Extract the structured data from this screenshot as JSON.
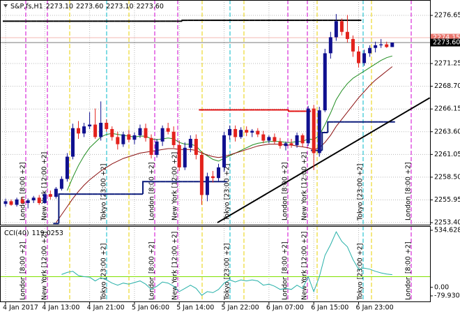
{
  "chart_data": [
    {
      "type": "candlestick",
      "title": "S&P,fs,H1",
      "header_values": [
        "2273.10",
        "2273.60",
        "2273.10",
        "2273.60"
      ],
      "categories": [
        "4 Jan 2017",
        null,
        null,
        null,
        null,
        null,
        null,
        "4 Jan 13:00",
        null,
        null,
        null,
        null,
        null,
        null,
        null,
        "4 Jan 21:00",
        null,
        null,
        null,
        null,
        null,
        null,
        null,
        "5 Jan 06:00",
        null,
        null,
        null,
        null,
        null,
        null,
        null,
        "5 Jan 14:00",
        null,
        null,
        null,
        null,
        null,
        null,
        null,
        "5 Jan 22:00",
        null,
        null,
        null,
        null,
        null,
        null,
        null,
        "6 Jan 07:00",
        null,
        null,
        null,
        null,
        null,
        null,
        null,
        "6 Jan 15:00",
        null,
        null,
        null,
        null,
        null,
        null,
        null,
        "6 Jan 23:00",
        null,
        null,
        null,
        null,
        null,
        null
      ],
      "open": [
        2255.5,
        2255.8,
        2255.4,
        2256.0,
        2255.6,
        2255.9,
        2256.2,
        2255.6,
        2256.6,
        2256.3,
        2257.2,
        2258.3,
        2260.8,
        2264.0,
        2263.4,
        2264.2,
        2264.4,
        2263.0,
        2264.6,
        2263.9,
        2263.0,
        2262.2,
        2263.3,
        2262.7,
        2263.2,
        2264.0,
        2262.9,
        2261.0,
        2262.5,
        2264.0,
        2263.6,
        2262.1,
        2259.6,
        2261.8,
        2262.8,
        2261.0,
        2256.5,
        2258.6,
        2258.4,
        2259.6,
        2263.2,
        2263.9,
        2263.0,
        2263.8,
        2263.5,
        2263.7,
        2263.3,
        2262.6,
        2263.0,
        2262.5,
        2262.0,
        2262.3,
        2262.1,
        2263.2,
        2262.3,
        2266.2,
        2261.2,
        2266.0,
        2272.4,
        2274.2,
        2276.0,
        2274.8,
        2274.0,
        2272.6,
        2271.3,
        2272.4,
        2273.0,
        2273.3,
        2273.4,
        2273.1
      ],
      "high": [
        2256.1,
        2256.0,
        2256.2,
        2256.3,
        2256.1,
        2256.4,
        2256.5,
        2256.8,
        2257.0,
        2257.4,
        2258.6,
        2261.2,
        2264.5,
        2264.8,
        2264.6,
        2265.8,
        2266.2,
        2267.0,
        2265.0,
        2264.2,
        2263.6,
        2263.6,
        2263.8,
        2263.5,
        2264.4,
        2264.5,
        2263.3,
        2262.8,
        2264.3,
        2264.6,
        2264.2,
        2262.6,
        2262.4,
        2263.2,
        2263.3,
        2261.4,
        2259.0,
        2259.2,
        2260.0,
        2263.6,
        2264.3,
        2264.3,
        2264.1,
        2264.2,
        2263.9,
        2264.0,
        2263.7,
        2263.2,
        2263.4,
        2262.9,
        2262.5,
        2262.8,
        2263.5,
        2263.4,
        2266.5,
        2266.6,
        2266.4,
        2272.9,
        2274.8,
        2276.8,
        2276.3,
        2276.7,
        2274.4,
        2273.2,
        2272.8,
        2273.3,
        2273.7,
        2274.0,
        2273.7,
        2273.6
      ],
      "low": [
        2255.2,
        2255.3,
        2255.2,
        2255.5,
        2255.0,
        2255.6,
        2255.4,
        2255.5,
        2256.0,
        2256.1,
        2257.0,
        2258.0,
        2260.5,
        2262.8,
        2263.0,
        2263.9,
        2262.8,
        2262.6,
        2263.6,
        2262.6,
        2261.6,
        2261.9,
        2262.4,
        2262.2,
        2262.9,
        2262.5,
        2260.6,
        2260.7,
        2262.0,
        2263.3,
        2261.8,
        2259.2,
        2259.3,
        2261.3,
        2260.5,
        2255.4,
        2255.8,
        2257.9,
        2258.0,
        2259.1,
        2262.7,
        2262.5,
        2262.8,
        2263.1,
        2263.0,
        2263.0,
        2262.3,
        2262.3,
        2262.2,
        2261.7,
        2261.5,
        2261.8,
        2261.8,
        2261.9,
        2262.0,
        2259.3,
        2260.8,
        2265.8,
        2271.8,
        2273.8,
        2274.4,
        2273.6,
        2272.0,
        2270.8,
        2271.0,
        2272.0,
        2272.5,
        2273.0,
        2273.0,
        2273.1
      ],
      "close": [
        2255.8,
        2255.4,
        2256.0,
        2255.6,
        2255.9,
        2256.2,
        2255.6,
        2256.6,
        2256.3,
        2257.2,
        2258.3,
        2260.8,
        2264.0,
        2263.4,
        2264.2,
        2264.4,
        2263.0,
        2264.6,
        2263.9,
        2263.0,
        2262.2,
        2263.3,
        2262.7,
        2263.2,
        2264.0,
        2262.9,
        2261.0,
        2262.5,
        2264.0,
        2263.6,
        2262.1,
        2259.6,
        2261.8,
        2262.8,
        2261.0,
        2256.5,
        2258.6,
        2258.4,
        2259.6,
        2263.2,
        2263.9,
        2263.0,
        2263.8,
        2263.5,
        2263.7,
        2263.3,
        2262.6,
        2263.0,
        2262.5,
        2262.0,
        2262.3,
        2262.1,
        2263.2,
        2262.3,
        2266.2,
        2261.2,
        2266.0,
        2272.4,
        2274.2,
        2276.0,
        2274.8,
        2274.0,
        2272.6,
        2271.3,
        2272.4,
        2273.0,
        2273.3,
        2273.4,
        2273.1,
        2273.6
      ],
      "up_color": "#10108f",
      "down_color": "#e3221c",
      "ylim": [
        2253.17,
        2278.22
      ],
      "yticks": [
        2276.65,
        2271.25,
        {
          "value": 2268.7,
          "label": "2268.70"
        },
        2266.15,
        {
          "value": 2263.6,
          "label": "2263.60"
        },
        2261.05,
        {
          "value": 2258.5,
          "label": "2258.50"
        },
        2255.95,
        {
          "value": 2253.4,
          "label": "2253.40"
        }
      ],
      "grid": true,
      "overlays": [
        {
          "style": "line",
          "color": "#1e8c1e",
          "values": [
            null,
            null,
            null,
            null,
            null,
            null,
            null,
            null,
            null,
            null,
            null,
            2257.0,
            2258.5,
            2259.8,
            2260.9,
            2261.8,
            2262.4,
            2263.0,
            2263.3,
            2263.4,
            2263.3,
            2263.2,
            2263.1,
            2263.0,
            2263.1,
            2263.1,
            2262.8,
            2262.7,
            2262.8,
            2262.9,
            2262.8,
            2262.4,
            2262.2,
            2262.2,
            2262.0,
            2261.3,
            2260.9,
            2260.5,
            2260.3,
            2260.6,
            2260.9,
            2261.2,
            2261.5,
            2261.8,
            2262.1,
            2262.3,
            2262.4,
            2262.5,
            2262.5,
            2262.5,
            2262.4,
            2262.4,
            2262.5,
            2262.5,
            2262.8,
            2262.7,
            2263.2,
            2264.4,
            2265.7,
            2267.2,
            2268.2,
            2269.0,
            2269.6,
            2270.0,
            2270.4,
            2270.8,
            2271.2,
            2271.6,
            2271.9,
            2272.1
          ]
        },
        {
          "style": "line",
          "color": "#8b1010",
          "values": [
            null,
            null,
            null,
            null,
            null,
            null,
            null,
            null,
            null,
            2253.4,
            2254.3,
            2255.2,
            2256.1,
            2256.9,
            2257.6,
            2258.2,
            2258.7,
            2259.2,
            2259.6,
            2260.0,
            2260.3,
            2260.6,
            2260.8,
            2261.0,
            2261.2,
            2261.3,
            2261.4,
            2261.5,
            2261.6,
            2261.7,
            2261.7,
            2261.6,
            2261.6,
            2261.6,
            2261.5,
            2261.2,
            2261.0,
            2260.8,
            2260.7,
            2260.8,
            2261.0,
            2261.2,
            2261.4,
            2261.6,
            2261.8,
            2262.0,
            2262.1,
            2262.2,
            2262.2,
            2262.2,
            2262.1,
            2262.1,
            2262.0,
            2261.9,
            2261.8,
            2261.6,
            2261.8,
            2262.4,
            2263.2,
            2264.2,
            2265.0,
            2265.8,
            2266.6,
            2267.4,
            2268.1,
            2268.8,
            2269.4,
            2269.9,
            2270.4,
            2270.9
          ]
        },
        {
          "style": "step",
          "color": "#0a1a7a",
          "values": [
            null,
            null,
            null,
            null,
            null,
            null,
            null,
            null,
            null,
            2253.3,
            2256.6,
            2256.6,
            2256.6,
            2256.6,
            2256.6,
            2256.6,
            2256.6,
            2256.6,
            2256.6,
            2256.6,
            2256.6,
            2256.6,
            2256.6,
            2256.6,
            2256.6,
            2258.0,
            2258.0,
            2258.0,
            2258.0,
            2258.0,
            2258.0,
            2258.0,
            2258.0,
            2258.0,
            2258.0,
            2258.0,
            2258.0,
            2258.0,
            2258.0,
            2258.0,
            null,
            null,
            null,
            null,
            null,
            null,
            null,
            null,
            null,
            null,
            null,
            null,
            null,
            null,
            null,
            2261.5,
            2261.5,
            2263.5,
            2264.7,
            2264.7,
            2264.7,
            2264.7,
            2264.7,
            2264.7,
            2264.7,
            2264.7,
            2264.7,
            2264.7,
            2264.7,
            2264.7
          ]
        },
        {
          "style": "step",
          "color": "#e01010",
          "values": [
            null,
            null,
            null,
            null,
            null,
            null,
            null,
            null,
            null,
            null,
            null,
            null,
            null,
            null,
            null,
            null,
            null,
            null,
            null,
            null,
            null,
            null,
            null,
            null,
            null,
            null,
            null,
            null,
            null,
            null,
            null,
            null,
            null,
            null,
            null,
            2266.05,
            2266.05,
            2266.05,
            2266.05,
            2266.05,
            2266.05,
            2266.05,
            2266.05,
            2266.05,
            2266.05,
            2266.05,
            2266.05,
            2266.05,
            2266.05,
            2266.05,
            2266.05,
            2265.9,
            2265.9,
            2265.9,
            2265.9,
            null,
            null,
            null,
            null,
            null,
            null,
            null,
            null,
            null,
            null,
            null,
            null,
            null,
            null,
            null
          ]
        },
        {
          "style": "step",
          "color": "#000000",
          "values": [
            2276.0,
            2276.0,
            2276.0,
            2276.0,
            2276.0,
            2276.0,
            2276.0,
            2276.0,
            2276.0,
            2276.0,
            2276.0,
            2276.0,
            2276.0,
            2276.0,
            2276.0,
            2276.0,
            2276.0,
            2276.0,
            2276.0,
            2276.0,
            2276.0,
            2276.0,
            2276.0,
            2276.0,
            2276.0,
            2276.0,
            2276.0,
            2276.0,
            2276.0,
            2276.0,
            2276.0,
            2276.0,
            2276.1,
            2276.1,
            2276.1,
            2276.1,
            2276.1,
            2276.1,
            2276.1,
            2276.1,
            2276.1,
            2276.1,
            2276.1,
            2276.1,
            2276.1,
            2276.1,
            2276.1,
            2276.1,
            2276.1,
            2276.1,
            2276.1,
            2276.1,
            2276.1,
            2276.1,
            2276.1,
            2276.1,
            2276.1,
            2276.1,
            2276.1,
            2276.1,
            2276.1,
            2276.1,
            2276.1,
            2276.1,
            null,
            null,
            null,
            null,
            null,
            null
          ]
        }
      ],
      "trendline": {
        "color": "#000000",
        "x": [
          37.8,
          75.7
        ],
        "values": [
          2253.4,
          2267.4
        ]
      },
      "price_tags": [
        {
          "value": 2274.15,
          "label": "2274.15",
          "color": "#e8776f"
        },
        {
          "value": 2273.6,
          "label": "2273.60",
          "color": "#000000"
        }
      ],
      "sessions": [
        {
          "label": "London [8:00 +2]",
          "color": "#d000d0"
        },
        {
          "label": "New York [12:00 +2]",
          "color": "#d000d0"
        },
        {
          "label": "Tokyo [23:00 +2]",
          "color": "#00b8c8"
        },
        {
          "label": "London [8:00 +2]",
          "color": "#d000d0"
        },
        {
          "label": "New York [12:00 +2]",
          "color": "#d000d0"
        },
        {
          "label": "Tokyo [23:00 +2]",
          "color": "#00b8c8"
        },
        {
          "label": "London [8:00 +2]",
          "color": "#d000d0"
        },
        {
          "label": "New York [12:00 +2]",
          "color": "#d000d0"
        },
        {
          "label": "Tokyo [23:00 +2]",
          "color": "#00b8c8"
        },
        {
          "label": "London [8:00 +2]",
          "color": "#d000d0"
        }
      ]
    },
    {
      "type": "line",
      "title": "CCI(40)",
      "series": [
        {
          "color": "#26b0a8",
          "values": [
            null,
            null,
            null,
            null,
            null,
            null,
            null,
            null,
            null,
            null,
            120,
            140,
            150,
            110,
            100,
            95,
            60,
            90,
            70,
            40,
            20,
            40,
            30,
            45,
            60,
            30,
            -20,
            10,
            50,
            40,
            10,
            -40,
            -10,
            20,
            -10,
            -75,
            -40,
            -50,
            -20,
            40,
            70,
            50,
            70,
            60,
            70,
            60,
            20,
            30,
            10,
            -20,
            -10,
            -20,
            20,
            -10,
            100,
            -40,
            100,
            300,
            400,
            520,
            430,
            380,
            260,
            170,
            180,
            170,
            150,
            135,
            125,
            119.0253
          ]
        }
      ],
      "ylim": [
        -79.9302,
        534.6286
      ],
      "yticks": [
        534.6286,
        {
          "value": 0,
          "label": "0.00"
        },
        -79.9302
      ],
      "levels": [
        100
      ],
      "level_color": "#80e000"
    }
  ]
}
